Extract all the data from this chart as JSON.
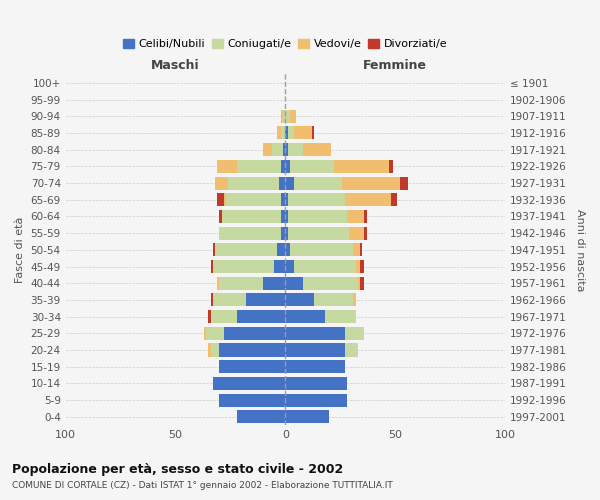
{
  "age_groups": [
    "0-4",
    "5-9",
    "10-14",
    "15-19",
    "20-24",
    "25-29",
    "30-34",
    "35-39",
    "40-44",
    "45-49",
    "50-54",
    "55-59",
    "60-64",
    "65-69",
    "70-74",
    "75-79",
    "80-84",
    "85-89",
    "90-94",
    "95-99",
    "100+"
  ],
  "birth_years": [
    "1997-2001",
    "1992-1996",
    "1987-1991",
    "1982-1986",
    "1977-1981",
    "1972-1976",
    "1967-1971",
    "1962-1966",
    "1957-1961",
    "1952-1956",
    "1947-1951",
    "1942-1946",
    "1937-1941",
    "1932-1936",
    "1927-1931",
    "1922-1926",
    "1917-1921",
    "1912-1916",
    "1907-1911",
    "1902-1906",
    "≤ 1901"
  ],
  "male_celibe": [
    22,
    30,
    33,
    30,
    30,
    28,
    22,
    18,
    10,
    5,
    4,
    2,
    2,
    2,
    3,
    2,
    1,
    0,
    0,
    0,
    0
  ],
  "male_coniugato": [
    0,
    0,
    0,
    0,
    4,
    8,
    12,
    15,
    20,
    28,
    28,
    28,
    27,
    25,
    23,
    20,
    5,
    2,
    1,
    0,
    0
  ],
  "male_vedovo": [
    0,
    0,
    0,
    0,
    1,
    1,
    0,
    0,
    1,
    0,
    0,
    0,
    0,
    1,
    6,
    9,
    4,
    2,
    1,
    0,
    0
  ],
  "male_divorziato": [
    0,
    0,
    0,
    0,
    0,
    0,
    1,
    1,
    0,
    1,
    1,
    0,
    1,
    3,
    0,
    0,
    0,
    0,
    0,
    0,
    0
  ],
  "female_celibe": [
    20,
    28,
    28,
    27,
    27,
    27,
    18,
    13,
    8,
    4,
    2,
    1,
    1,
    1,
    4,
    2,
    1,
    1,
    0,
    0,
    0
  ],
  "female_coniugata": [
    0,
    0,
    0,
    0,
    6,
    9,
    14,
    18,
    25,
    28,
    29,
    28,
    27,
    26,
    22,
    20,
    7,
    3,
    2,
    0,
    0
  ],
  "female_vedova": [
    0,
    0,
    0,
    0,
    0,
    0,
    0,
    1,
    1,
    2,
    3,
    7,
    8,
    21,
    26,
    25,
    13,
    8,
    3,
    0,
    0
  ],
  "female_divorziata": [
    0,
    0,
    0,
    0,
    0,
    0,
    0,
    0,
    2,
    2,
    1,
    1,
    1,
    3,
    4,
    2,
    0,
    1,
    0,
    0,
    0
  ],
  "colors": {
    "celibe": "#4472c4",
    "coniugato": "#c5d9a0",
    "vedovo": "#f0be6e",
    "divorziato": "#c0392b"
  },
  "title": "Popolazione per età, sesso e stato civile - 2002",
  "subtitle": "COMUNE DI CORTALE (CZ) - Dati ISTAT 1° gennaio 2002 - Elaborazione TUTTITALIA.IT",
  "xlabel_left": "Maschi",
  "xlabel_right": "Femmine",
  "ylabel_left": "Fasce di età",
  "ylabel_right": "Anni di nascita",
  "xlim": 100,
  "background_color": "#f5f5f5",
  "grid_color": "#cccccc"
}
